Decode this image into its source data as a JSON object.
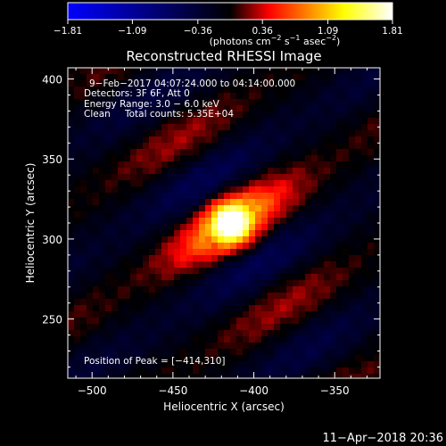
{
  "chart_data": {
    "type": "heatmap",
    "title": "Reconstructed RHESSI Image",
    "xlabel": "Heliocentric X (arcsec)",
    "ylabel": "Heliocentric Y (arcsec)",
    "xlim": [
      -515,
      -322
    ],
    "ylim": [
      213,
      407
    ],
    "x_ticks": [
      -500,
      -450,
      -400,
      -350
    ],
    "y_ticks": [
      250,
      300,
      350,
      400
    ],
    "x_tick_labels": [
      "−500",
      "−450",
      "−400",
      "−350"
    ],
    "y_tick_labels": [
      "250",
      "300",
      "350",
      "400"
    ],
    "colorbar": {
      "range": [
        -1.81,
        1.81
      ],
      "ticks": [
        -1.81,
        -1.09,
        -0.36,
        0.36,
        1.09,
        1.81
      ],
      "tick_labels": [
        "−1.81",
        "−1.09",
        "−0.36",
        "0.36",
        "1.09",
        "1.81"
      ],
      "unit_prefix": "(photons cm",
      "unit_sup1": "−2",
      "unit_mid": " s",
      "unit_sup2": "−1",
      "unit_mid2": " asec",
      "unit_sup3": "−2",
      "unit_suffix": ")",
      "colors": [
        "#0000ff",
        "#000000",
        "#ff0000",
        "#ffff00",
        "#ffffff"
      ]
    },
    "annotations": {
      "time_range": "9−Feb−2017 04:07:24.000 to 04:14:00.000",
      "detectors": "Detectors: 3F 6F, Att 0",
      "energy_range": "Energy Range: 3.0 − 6.0 keV",
      "method": "Clean",
      "total_counts": "Total counts: 5.35E+04",
      "peak_position": "Position of Peak = [−414,310]"
    },
    "peak": [
      -414,
      310
    ],
    "timestamp": "11−Apr−2018 20:36"
  }
}
